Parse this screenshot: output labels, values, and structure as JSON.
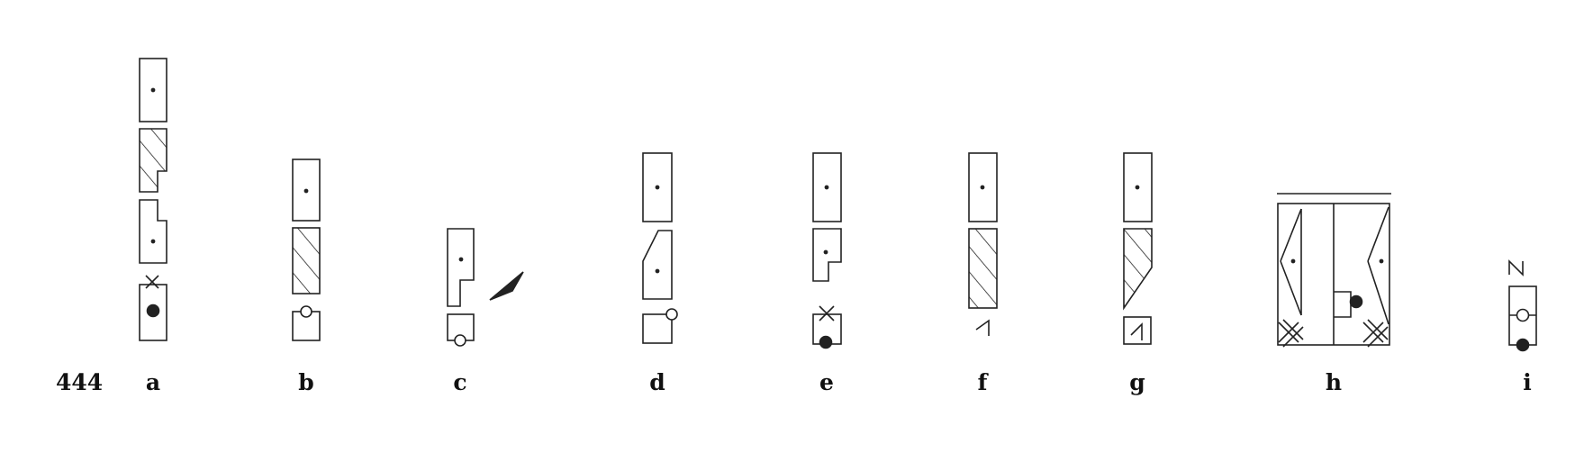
{
  "figure_number": "444",
  "panels": [
    {
      "id": "a",
      "label": "a"
    },
    {
      "id": "b",
      "label": "b"
    },
    {
      "id": "c",
      "label": "c"
    },
    {
      "id": "d",
      "label": "d"
    },
    {
      "id": "e",
      "label": "e"
    },
    {
      "id": "f",
      "label": "f"
    },
    {
      "id": "g",
      "label": "g"
    },
    {
      "id": "h",
      "label": "h"
    },
    {
      "id": "i",
      "label": "i"
    }
  ]
}
